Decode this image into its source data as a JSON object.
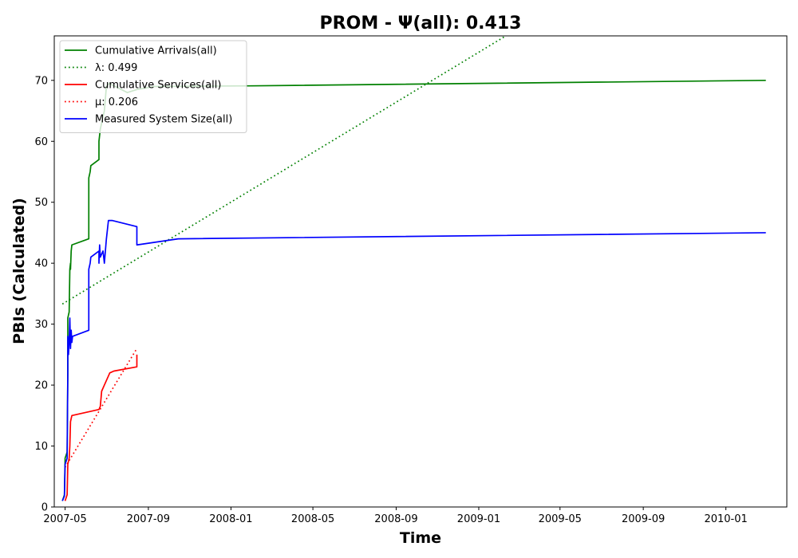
{
  "chart_data": {
    "type": "line",
    "title": "PROM -  Ψ(all): 0.413",
    "xlabel": "Time",
    "ylabel": "PBIs (Calculated)",
    "xlim": [
      "2007-04-15",
      "2010-04-01"
    ],
    "ylim": [
      0,
      77.3
    ],
    "x_ticks": [
      "2007-05-01",
      "2007-09-01",
      "2008-01-01",
      "2008-05-01",
      "2008-09-01",
      "2009-01-01",
      "2009-05-01",
      "2009-09-01",
      "2010-01-01"
    ],
    "x_tick_labels": [
      "2007-05",
      "2007-09",
      "2008-01",
      "2008-05",
      "2008-09",
      "2009-01",
      "2009-05",
      "2009-09",
      "2010-01"
    ],
    "y_ticks": [
      0,
      10,
      20,
      30,
      40,
      50,
      60,
      70
    ],
    "y_tick_labels": [
      "0",
      "10",
      "20",
      "30",
      "40",
      "50",
      "60",
      "70"
    ],
    "grid": false,
    "legend_position": "top-left",
    "series": [
      {
        "name": "Cumulative Arrivals(all)",
        "color": "#008000",
        "style": "solid",
        "points": [
          [
            "2007-04-27",
            1
          ],
          [
            "2007-04-30",
            2
          ],
          [
            "2007-05-01",
            8
          ],
          [
            "2007-05-04",
            9
          ],
          [
            "2007-05-05",
            22
          ],
          [
            "2007-05-05",
            31
          ],
          [
            "2007-05-07",
            32
          ],
          [
            "2007-05-08",
            39
          ],
          [
            "2007-05-09",
            40
          ],
          [
            "2007-05-09",
            39
          ],
          [
            "2007-05-10",
            42
          ],
          [
            "2007-05-11",
            43
          ],
          [
            "2007-06-05",
            44
          ],
          [
            "2007-06-05",
            54
          ],
          [
            "2007-06-07",
            55
          ],
          [
            "2007-06-08",
            56
          ],
          [
            "2007-06-20",
            57
          ],
          [
            "2007-06-20",
            60
          ],
          [
            "2007-06-22",
            62
          ],
          [
            "2007-06-28",
            65
          ],
          [
            "2007-07-01",
            69
          ],
          [
            "2007-07-05",
            69.5
          ],
          [
            "2007-08-01",
            68
          ],
          [
            "2007-08-15",
            68.5
          ],
          [
            "2007-09-10",
            69
          ],
          [
            "2008-02-01",
            69.1
          ],
          [
            "2010-03-01",
            70
          ]
        ]
      },
      {
        "name": "λ: 0.499",
        "color": "#008000",
        "style": "dotted",
        "points": [
          [
            "2007-04-27",
            33.3
          ],
          [
            "2009-02-10",
            77.3
          ]
        ]
      },
      {
        "name": "Cumulative Services(all)",
        "color": "#ff0000",
        "style": "solid",
        "points": [
          [
            "2007-05-01",
            1
          ],
          [
            "2007-05-04",
            2
          ],
          [
            "2007-05-05",
            7
          ],
          [
            "2007-05-07",
            8
          ],
          [
            "2007-05-08",
            10
          ],
          [
            "2007-05-09",
            14
          ],
          [
            "2007-05-11",
            15
          ],
          [
            "2007-06-20",
            16
          ],
          [
            "2007-06-22",
            16.5
          ],
          [
            "2007-06-24",
            19
          ],
          [
            "2007-06-28",
            20
          ],
          [
            "2007-07-02",
            21
          ],
          [
            "2007-07-06",
            22
          ],
          [
            "2007-07-12",
            22.3
          ],
          [
            "2007-08-15",
            23
          ],
          [
            "2007-08-15",
            25
          ]
        ]
      },
      {
        "name": "μ: 0.206",
        "color": "#ff0000",
        "style": "dotted",
        "points": [
          [
            "2007-05-01",
            6.5
          ],
          [
            "2007-08-15",
            26
          ]
        ]
      },
      {
        "name": "Measured System Size(all)",
        "color": "#0000ff",
        "style": "solid",
        "points": [
          [
            "2007-04-27",
            1
          ],
          [
            "2007-04-30",
            1.8
          ],
          [
            "2007-05-01",
            7
          ],
          [
            "2007-05-04",
            8
          ],
          [
            "2007-05-05",
            22
          ],
          [
            "2007-05-05",
            28
          ],
          [
            "2007-05-06",
            25
          ],
          [
            "2007-05-07",
            27
          ],
          [
            "2007-05-08",
            31
          ],
          [
            "2007-05-09",
            26
          ],
          [
            "2007-05-10",
            29
          ],
          [
            "2007-05-11",
            27
          ],
          [
            "2007-05-12",
            28
          ],
          [
            "2007-06-05",
            29
          ],
          [
            "2007-06-05",
            39
          ],
          [
            "2007-06-07",
            40
          ],
          [
            "2007-06-08",
            41
          ],
          [
            "2007-06-20",
            42
          ],
          [
            "2007-06-20",
            40
          ],
          [
            "2007-06-21",
            43
          ],
          [
            "2007-06-22",
            41
          ],
          [
            "2007-06-26",
            42
          ],
          [
            "2007-06-28",
            40
          ],
          [
            "2007-07-01",
            44
          ],
          [
            "2007-07-04",
            47
          ],
          [
            "2007-07-10",
            47
          ],
          [
            "2007-08-15",
            46
          ],
          [
            "2007-08-15",
            43
          ],
          [
            "2007-10-15",
            44
          ],
          [
            "2010-03-01",
            45
          ]
        ]
      }
    ]
  }
}
